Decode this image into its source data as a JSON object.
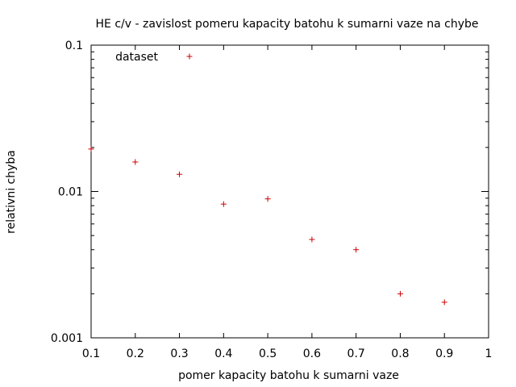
{
  "chart_data": {
    "type": "scatter",
    "title": "HE c/v - zavislost pomeru kapacity batohu k sumarni vaze na chybe",
    "xlabel": "pomer kapacity batohu k sumarni vaze",
    "ylabel": "relativni chyba",
    "xlim": [
      0.1,
      1
    ],
    "ylim": [
      0.001,
      0.1
    ],
    "y_scale": "log",
    "grid": false,
    "legend_position": "top-left",
    "x_ticks": [
      "0.1",
      "0.2",
      "0.3",
      "0.4",
      "0.5",
      "0.6",
      "0.7",
      "0.8",
      "0.9",
      "1"
    ],
    "y_ticks": [
      "0.001",
      "0.01",
      "0.1"
    ],
    "series": [
      {
        "name": "dataset",
        "color": "#cc0000",
        "marker": "plus",
        "x": [
          0.1,
          0.2,
          0.3,
          0.4,
          0.5,
          0.6,
          0.7,
          0.8,
          0.9
        ],
        "y": [
          0.0195,
          0.0159,
          0.0131,
          0.0082,
          0.0089,
          0.0047,
          0.004,
          0.002,
          0.00175
        ]
      }
    ]
  }
}
